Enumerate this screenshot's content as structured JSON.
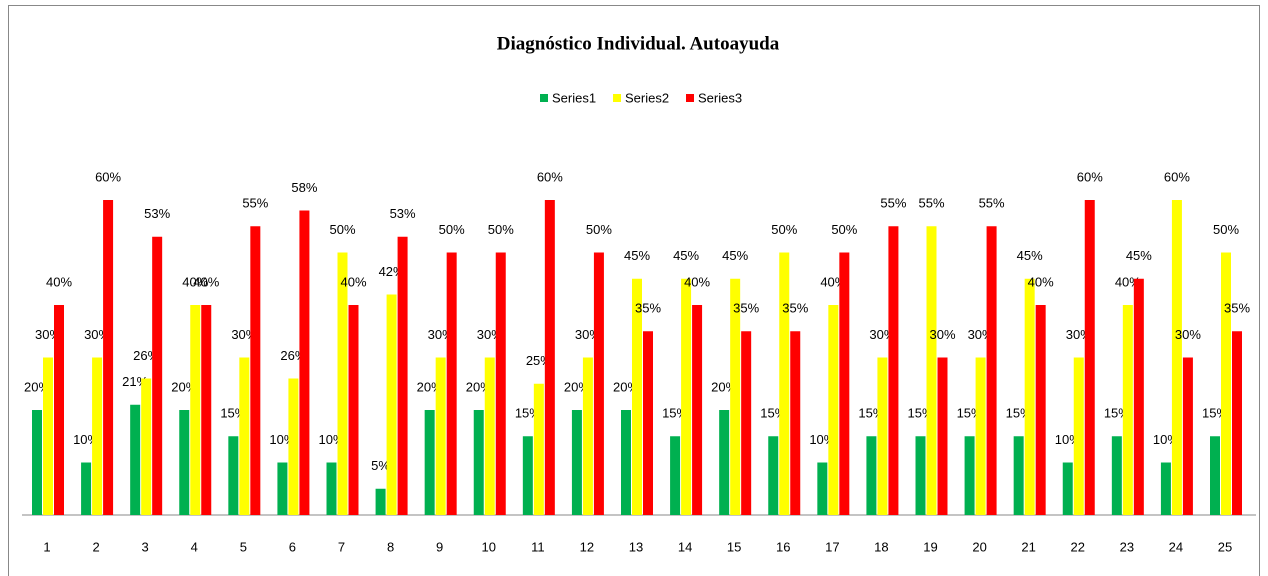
{
  "chart_data": {
    "type": "bar",
    "title": "Diagnóstico Individual. Autoayuda",
    "categories": [
      "1",
      "2",
      "3",
      "4",
      "5",
      "6",
      "7",
      "8",
      "9",
      "10",
      "11",
      "12",
      "13",
      "14",
      "15",
      "16",
      "17",
      "18",
      "19",
      "20",
      "21",
      "22",
      "23",
      "24",
      "25"
    ],
    "series": [
      {
        "name": "Series1",
        "color": "#00b050",
        "values": [
          20,
          10,
          21,
          20,
          15,
          10,
          10,
          5,
          20,
          20,
          15,
          20,
          20,
          15,
          20,
          15,
          10,
          15,
          15,
          15,
          15,
          10,
          15,
          10,
          15
        ],
        "value_labels": [
          "20%",
          "10%",
          "21%",
          "20%",
          "15%",
          "10%",
          "10%",
          "5%",
          "20%",
          "20%",
          "15%",
          "20%",
          "20%",
          "15%",
          "20%",
          "15%",
          "10%",
          "15%",
          "15%",
          "15%",
          "15%",
          "10%",
          "15%",
          "10%",
          "15%"
        ]
      },
      {
        "name": "Series2",
        "color": "#ffff00",
        "values": [
          30,
          30,
          26,
          40,
          30,
          26,
          50,
          42,
          30,
          30,
          25,
          30,
          45,
          45,
          45,
          50,
          40,
          30,
          55,
          30,
          45,
          30,
          40,
          60,
          50
        ],
        "value_labels": [
          "30%",
          "30%",
          "26%",
          "40%",
          "30%",
          "26%",
          "50%",
          "42%",
          "30%",
          "30%",
          "25%",
          "30%",
          "45%",
          "45%",
          "45%",
          "50%",
          "40%",
          "30%",
          "55%",
          "30%",
          "45%",
          "30%",
          "40%",
          "60%",
          "50%"
        ]
      },
      {
        "name": "Series3",
        "color": "#ff0000",
        "values": [
          40,
          60,
          53,
          40,
          55,
          58,
          40,
          53,
          50,
          50,
          60,
          50,
          35,
          40,
          35,
          35,
          50,
          55,
          30,
          55,
          40,
          60,
          45,
          30,
          35
        ],
        "value_labels": [
          "40%",
          "60%",
          "53%",
          "40%",
          "55%",
          "58%",
          "40%",
          "53%",
          "50%",
          "50%",
          "60%",
          "50%",
          "35%",
          "40%",
          "35%",
          "35%",
          "50%",
          "55%",
          "30%",
          "55%",
          "40%",
          "60%",
          "45%",
          "30%",
          "35%"
        ]
      }
    ],
    "legend": "top"
  }
}
